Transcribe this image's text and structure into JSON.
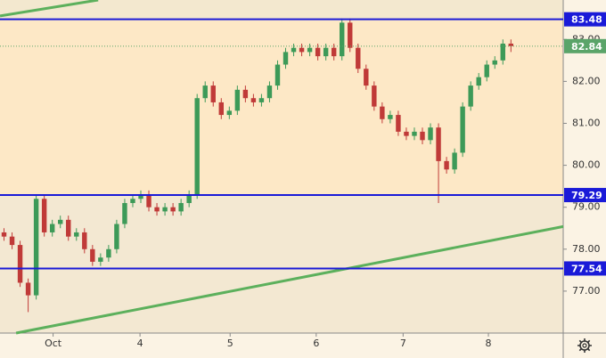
{
  "chart_data": {
    "type": "candlestick",
    "x": [
      0.5,
      1.5,
      2.5,
      3.5,
      4.5,
      5.5,
      6.5,
      7.5,
      8.5,
      9.5,
      10.5,
      11.5,
      12.5,
      13.5,
      14.5,
      15.5,
      16.5,
      17.5,
      18.5,
      19.5,
      20.5,
      21.5,
      22.5,
      23.5,
      24.5,
      25.5,
      26.5,
      27.5,
      28.5,
      29.5,
      30.5,
      31.5,
      32.5,
      33.5,
      34.5,
      35.5,
      36.5,
      37.5,
      38.5,
      39.5,
      40.5,
      41.5,
      42.5,
      43.5,
      44.5,
      45.5,
      46.5,
      47.5,
      48.5,
      49.5,
      50.5,
      51.5,
      52.5,
      53.5,
      54.5,
      55.5,
      56.5,
      57.5,
      58.5,
      59.5,
      60.5,
      61.5,
      62.5,
      63.5
    ],
    "open": [
      78.4,
      78.3,
      78.1,
      77.2,
      76.9,
      79.2,
      78.4,
      78.6,
      78.7,
      78.3,
      78.4,
      78.0,
      77.7,
      77.8,
      78.0,
      78.6,
      79.1,
      79.2,
      79.3,
      79.0,
      78.9,
      79.0,
      78.9,
      79.1,
      79.3,
      81.6,
      81.9,
      81.5,
      81.2,
      81.3,
      81.8,
      81.6,
      81.5,
      81.6,
      81.9,
      82.4,
      82.7,
      82.8,
      82.7,
      82.8,
      82.6,
      82.8,
      82.6,
      83.4,
      82.8,
      82.3,
      81.9,
      81.4,
      81.1,
      81.2,
      80.8,
      80.7,
      80.8,
      80.6,
      80.9,
      80.1,
      79.9,
      80.3,
      81.4,
      81.9,
      82.1,
      82.4,
      82.5,
      82.9
    ],
    "high": [
      78.5,
      78.4,
      78.2,
      77.3,
      79.3,
      79.3,
      78.7,
      78.8,
      78.8,
      78.5,
      78.5,
      78.1,
      77.9,
      78.1,
      78.7,
      79.2,
      79.3,
      79.4,
      79.4,
      79.1,
      79.1,
      79.1,
      79.2,
      79.4,
      81.7,
      82.0,
      82.0,
      81.6,
      81.4,
      81.9,
      81.9,
      81.7,
      81.7,
      82.0,
      82.5,
      82.8,
      82.9,
      82.9,
      82.9,
      82.9,
      82.9,
      82.9,
      83.5,
      83.5,
      82.9,
      82.4,
      82.0,
      81.5,
      81.3,
      81.3,
      80.9,
      80.9,
      80.9,
      81.0,
      81.0,
      80.2,
      80.4,
      81.5,
      82.0,
      82.2,
      82.5,
      82.6,
      83.0,
      83.0
    ],
    "low": [
      78.2,
      78.0,
      77.1,
      76.5,
      76.8,
      78.3,
      78.3,
      78.5,
      78.2,
      78.2,
      77.9,
      77.6,
      77.6,
      77.7,
      77.9,
      78.5,
      79.0,
      79.1,
      78.9,
      78.8,
      78.8,
      78.8,
      78.8,
      79.0,
      79.2,
      81.5,
      81.4,
      81.1,
      81.1,
      81.2,
      81.5,
      81.4,
      81.4,
      81.5,
      81.8,
      82.3,
      82.6,
      82.6,
      82.6,
      82.5,
      82.5,
      82.5,
      82.5,
      82.7,
      82.2,
      81.8,
      81.3,
      81.0,
      81.0,
      80.7,
      80.6,
      80.6,
      80.5,
      80.5,
      79.1,
      79.8,
      79.8,
      80.2,
      81.3,
      81.8,
      82.0,
      82.3,
      82.4,
      82.7
    ],
    "close": [
      78.3,
      78.1,
      77.2,
      76.9,
      79.2,
      78.4,
      78.6,
      78.7,
      78.3,
      78.4,
      78.0,
      77.7,
      77.8,
      78.0,
      78.6,
      79.1,
      79.2,
      79.3,
      79.0,
      78.9,
      79.0,
      78.9,
      79.1,
      79.3,
      81.6,
      81.9,
      81.5,
      81.2,
      81.3,
      81.8,
      81.6,
      81.5,
      81.6,
      81.9,
      82.4,
      82.7,
      82.8,
      82.7,
      82.8,
      82.6,
      82.8,
      82.6,
      83.4,
      82.8,
      82.3,
      81.9,
      81.4,
      81.1,
      81.2,
      80.8,
      80.7,
      80.8,
      80.6,
      80.9,
      80.1,
      79.9,
      80.3,
      81.4,
      81.9,
      82.1,
      82.4,
      82.5,
      82.9,
      82.84
    ],
    "up_color": "#3d9a58",
    "down_color": "#c03a38",
    "xlim": [
      0,
      70
    ],
    "xticks": [
      {
        "value": 6.6,
        "label": "Oct"
      },
      {
        "value": 17.4,
        "label": "4"
      },
      {
        "value": 28.6,
        "label": "5"
      },
      {
        "value": 39.3,
        "label": "6"
      },
      {
        "value": 50.1,
        "label": "7"
      },
      {
        "value": 60.7,
        "label": "8"
      }
    ],
    "ylim": [
      76,
      83.94
    ],
    "yticks": [
      {
        "value": 77,
        "label": "77.00"
      },
      {
        "value": 78,
        "label": "78.00"
      },
      {
        "value": 79,
        "label": "79.00"
      },
      {
        "value": 80,
        "label": "80.00"
      },
      {
        "value": 81,
        "label": "81.00"
      },
      {
        "value": 82,
        "label": "82.00"
      },
      {
        "value": 83,
        "label": "83.00"
      }
    ],
    "levels": [
      {
        "value": 83.48,
        "color": "#1a1ad8"
      },
      {
        "value": 79.29,
        "color": "#1a1ad8"
      },
      {
        "value": 77.54,
        "color": "#1a1ad8"
      }
    ],
    "last_price": {
      "value": 82.84,
      "color": "#5aa469"
    },
    "background_colors": [
      "#f3e8cf",
      "#fde8c6",
      "#f3e8d2"
    ],
    "trendlines": [
      {
        "x": [
          0,
          12.2
        ],
        "y": [
          83.56,
          83.94
        ],
        "color": "#5cb05c"
      },
      {
        "x": [
          2,
          70
        ],
        "y": [
          76,
          78.54
        ],
        "color": "#5cb05c"
      }
    ]
  }
}
